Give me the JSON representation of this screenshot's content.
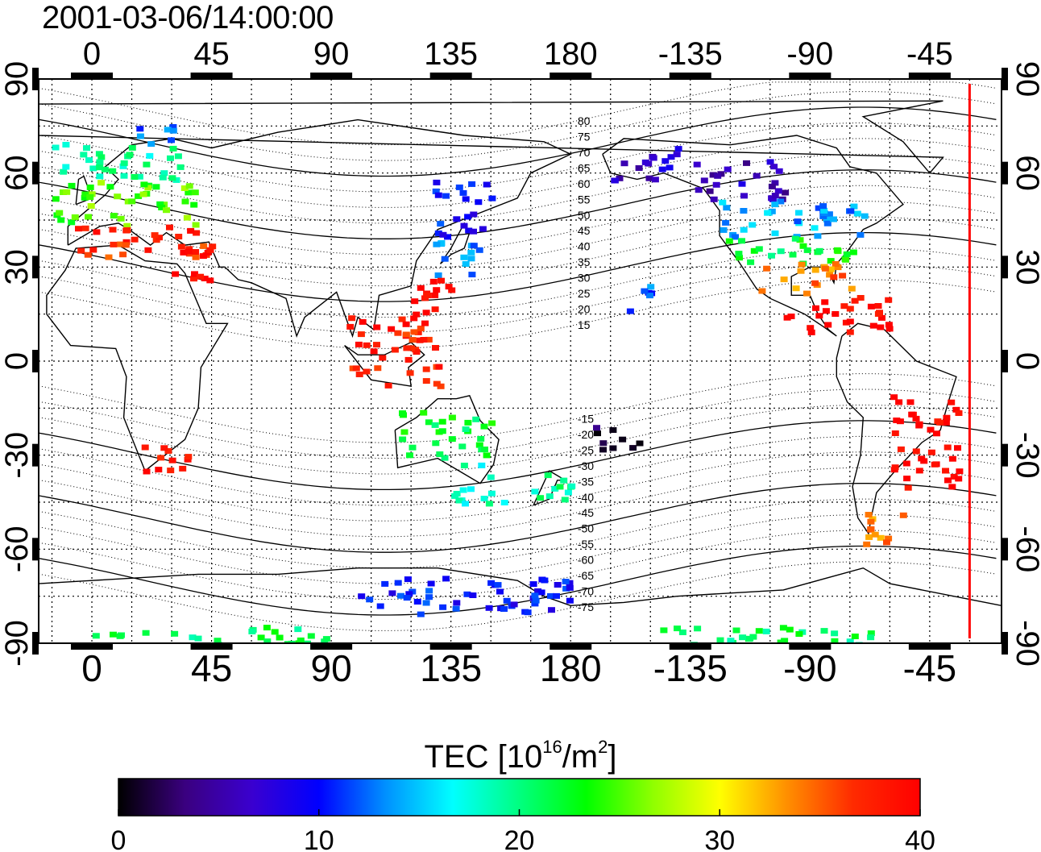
{
  "timestamp": "2001-03-06/14:00:00",
  "chart_data": {
    "type": "heatmap",
    "title": "",
    "colorbar": {
      "label_prefix": "TEC  [10",
      "label_exp1": "16",
      "label_mid": "/m",
      "label_exp2": "2",
      "label_suffix": "]",
      "range": [
        0,
        40
      ],
      "ticks": [
        "0",
        "10",
        "20",
        "30",
        "40"
      ],
      "colormap": [
        "#000000",
        "#3a007f",
        "#3a00d0",
        "#0000ff",
        "#0090ff",
        "#00ffff",
        "#00ff80",
        "#00ff00",
        "#90ff00",
        "#ffff00",
        "#ff9000",
        "#ff2a00",
        "#ff0000"
      ]
    },
    "x_axis": {
      "range_east_deg": [
        -20,
        342
      ],
      "ticks": [
        "0",
        "45",
        "90",
        "135",
        "180",
        "-135",
        "-90",
        "-45"
      ]
    },
    "y_axis": {
      "range": [
        -90,
        90
      ],
      "ticks": [
        "90",
        "60",
        "30",
        "0",
        "-30",
        "-60",
        "-90"
      ]
    },
    "grid": true,
    "magnetic_latitude_labels": [
      "80",
      "75",
      "70",
      "65",
      "60",
      "55",
      "50",
      "45",
      "40",
      "35",
      "30",
      "25",
      "20",
      "15",
      "-15",
      "-20",
      "-25",
      "-30",
      "-35",
      "-40",
      "-45",
      "-50",
      "-55",
      "-60",
      "-65",
      "-70",
      "-75"
    ],
    "terminator_longitude": -30,
    "tec_patches": [
      {
        "region": "Europe-north",
        "lon": [
          -15,
          35
        ],
        "lat": [
          58,
          70
        ],
        "tec": 19
      },
      {
        "region": "Europe-central",
        "lon": [
          -15,
          40
        ],
        "lat": [
          44,
          58
        ],
        "tec": 25
      },
      {
        "region": "Europe-south",
        "lon": [
          -12,
          42
        ],
        "lat": [
          34,
          44
        ],
        "tec": 37
      },
      {
        "region": "Scandinavia",
        "lon": [
          15,
          30
        ],
        "lat": [
          70,
          78
        ],
        "tec": 13
      },
      {
        "region": "Middle-east",
        "lon": [
          25,
          45
        ],
        "lat": [
          26,
          38
        ],
        "tec": 40
      },
      {
        "region": "Japan-north",
        "lon": [
          128,
          150
        ],
        "lat": [
          40,
          58
        ],
        "tec": 10
      },
      {
        "region": "Japan-south",
        "lon": [
          125,
          145
        ],
        "lat": [
          28,
          40
        ],
        "tec": 13
      },
      {
        "region": "China-east",
        "lon": [
          118,
          135
        ],
        "lat": [
          15,
          30
        ],
        "tec": 40
      },
      {
        "region": "Indonesia",
        "lon": [
          95,
          130
        ],
        "lat": [
          -8,
          15
        ],
        "tec": 38
      },
      {
        "region": "South-Africa",
        "lon": [
          15,
          35
        ],
        "lat": [
          -35,
          -25
        ],
        "tec": 39
      },
      {
        "region": "Australia-north",
        "lon": [
          115,
          150
        ],
        "lat": [
          -30,
          -15
        ],
        "tec": 22
      },
      {
        "region": "Australia-south",
        "lon": [
          135,
          155
        ],
        "lat": [
          -45,
          -32
        ],
        "tec": 18
      },
      {
        "region": "New-Zealand",
        "lon": [
          165,
          180
        ],
        "lat": [
          -48,
          -35
        ],
        "tec": 20
      },
      {
        "region": "Alaska",
        "lon": [
          -165,
          -140
        ],
        "lat": [
          58,
          70
        ],
        "tec": 7
      },
      {
        "region": "Canada-west",
        "lon": [
          -135,
          -100
        ],
        "lat": [
          52,
          65
        ],
        "tec": 6
      },
      {
        "region": "USA-north",
        "lon": [
          -125,
          -70
        ],
        "lat": [
          40,
          52
        ],
        "tec": 14
      },
      {
        "region": "USA-central",
        "lon": [
          -125,
          -70
        ],
        "lat": [
          32,
          40
        ],
        "tec": 22
      },
      {
        "region": "USA-south",
        "lon": [
          -110,
          -75
        ],
        "lat": [
          22,
          32
        ],
        "tec": 34
      },
      {
        "region": "Caribbean",
        "lon": [
          -100,
          -60
        ],
        "lat": [
          10,
          22
        ],
        "tec": 40
      },
      {
        "region": "Brazil",
        "lon": [
          -60,
          -35
        ],
        "lat": [
          -40,
          -10
        ],
        "tec": 40
      },
      {
        "region": "Argentina",
        "lon": [
          -72,
          -55
        ],
        "lat": [
          -58,
          -45
        ],
        "tec": 34
      },
      {
        "region": "Hawaii",
        "lon": [
          -160,
          -150
        ],
        "lat": [
          15,
          25
        ],
        "tec": 12
      },
      {
        "region": "Pacific-south",
        "lon": [
          -175,
          -155
        ],
        "lat": [
          -28,
          -20
        ],
        "tec": 2
      },
      {
        "region": "Antarctica-east",
        "lon": [
          100,
          180
        ],
        "lat": [
          -80,
          -68
        ],
        "tec": 10
      },
      {
        "region": "Antarctica-rim",
        "lon": [
          0,
          90
        ],
        "lat": [
          -90,
          -84
        ],
        "tec": 21
      },
      {
        "region": "Antarctica-west",
        "lon": [
          -150,
          -60
        ],
        "lat": [
          -90,
          -84
        ],
        "tec": 21
      }
    ]
  }
}
